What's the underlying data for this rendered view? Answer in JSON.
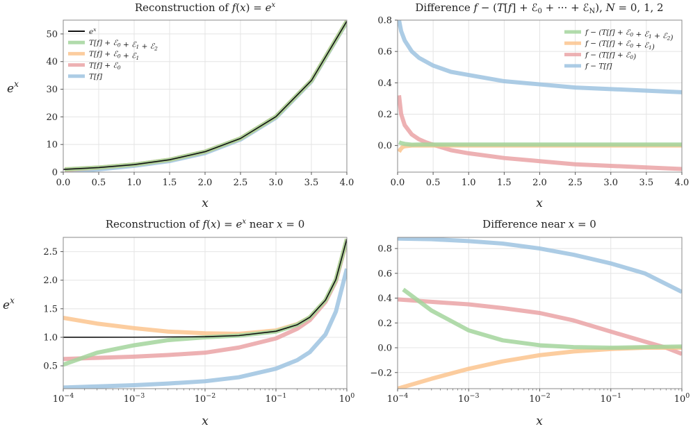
{
  "chart_data": [
    {
      "id": "p1",
      "type": "line",
      "title": "Reconstruction of f(x) = e^x",
      "xlabel": "x",
      "ylabel": "e^x",
      "xscale": "linear",
      "xlim": [
        0,
        4
      ],
      "ylim": [
        0,
        55
      ],
      "xticks": [
        0.0,
        0.5,
        1.0,
        1.5,
        2.0,
        2.5,
        3.0,
        3.5,
        4.0
      ],
      "xtick_labels": [
        "0.0",
        "0.5",
        "1.0",
        "1.5",
        "2.0",
        "2.5",
        "3.0",
        "3.5",
        "4.0"
      ],
      "yticks": [
        0,
        10,
        20,
        30,
        40,
        50
      ],
      "ytick_labels": [
        "0",
        "10",
        "20",
        "30",
        "40",
        "50"
      ],
      "grid": true,
      "legend_position": "top-left",
      "legend_order": [
        "exact",
        "e2",
        "e1",
        "e0",
        "t"
      ],
      "series": [
        {
          "key": "t",
          "name": "T[f]",
          "color": "#9ec3e0",
          "width": 6,
          "opacity": 0.85,
          "x": [
            0.02,
            0.1,
            0.5,
            1.0,
            1.5,
            2.0,
            2.5,
            3.0,
            3.5,
            4.0
          ],
          "y": [
            0.2,
            0.3,
            1.0,
            2.3,
            4.0,
            6.9,
            11.8,
            19.7,
            32.8,
            54.3
          ]
        },
        {
          "key": "e0",
          "name": "T[f] + E_0",
          "color": "#eaa3a6",
          "width": 6,
          "opacity": 0.85,
          "x": [
            0.02,
            0.1,
            0.5,
            1.0,
            1.5,
            2.0,
            2.5,
            3.0,
            3.5,
            4.0
          ],
          "y": [
            0.74,
            0.9,
            1.62,
            2.72,
            4.48,
            7.39,
            12.2,
            20.1,
            33.1,
            54.6
          ]
        },
        {
          "key": "e1",
          "name": "T[f] + E_0 + E_1",
          "color": "#fcc48e",
          "width": 6,
          "opacity": 0.85,
          "x": [
            0.02,
            0.1,
            0.5,
            1.0,
            1.5,
            2.0,
            2.5,
            3.0,
            3.5,
            4.0
          ],
          "y": [
            1.06,
            1.11,
            1.65,
            2.72,
            4.48,
            7.39,
            12.2,
            20.1,
            33.1,
            54.6
          ]
        },
        {
          "key": "e2",
          "name": "T[f] + E_0 + E_1 + E_2",
          "color": "#a3d59c",
          "width": 6,
          "opacity": 0.85,
          "x": [
            0.02,
            0.1,
            0.5,
            1.0,
            1.5,
            2.0,
            2.5,
            3.0,
            3.5,
            4.0
          ],
          "y": [
            1.0,
            1.1,
            1.65,
            2.72,
            4.48,
            7.39,
            12.2,
            20.1,
            33.1,
            54.6
          ]
        },
        {
          "key": "exact",
          "name": "e^x",
          "color": "#111111",
          "width": 1.6,
          "opacity": 1,
          "x": [
            0.0,
            0.5,
            1.0,
            1.5,
            2.0,
            2.5,
            3.0,
            3.5,
            4.0
          ],
          "y": [
            1.0,
            1.65,
            2.72,
            4.48,
            7.39,
            12.18,
            20.09,
            33.12,
            54.6
          ]
        }
      ]
    },
    {
      "id": "p2",
      "type": "line",
      "title": "Difference f − (T[f] + E_0 + ··· + E_N),    N = 0, 1, 2",
      "xlabel": "x",
      "ylabel": "",
      "xscale": "linear",
      "xlim": [
        0,
        4
      ],
      "ylim": [
        -0.17,
        0.8
      ],
      "xticks": [
        0.0,
        0.5,
        1.0,
        1.5,
        2.0,
        2.5,
        3.0,
        3.5,
        4.0
      ],
      "xtick_labels": [
        "0.0",
        "0.5",
        "1.0",
        "1.5",
        "2.0",
        "2.5",
        "3.0",
        "3.5",
        "4.0"
      ],
      "yticks": [
        0.0,
        0.2,
        0.4,
        0.6,
        0.8
      ],
      "ytick_labels": [
        "0.0",
        "0.2",
        "0.4",
        "0.6",
        "0.8"
      ],
      "grid": true,
      "legend_position": "top-right",
      "legend_order": [
        "e2",
        "e1",
        "e0",
        "t"
      ],
      "series": [
        {
          "key": "t",
          "name": "f − T[f]",
          "color": "#9ec3e0",
          "width": 6,
          "opacity": 0.85,
          "x": [
            0.02,
            0.05,
            0.1,
            0.2,
            0.3,
            0.5,
            0.75,
            1.0,
            1.5,
            2.0,
            2.5,
            3.0,
            3.5,
            4.0
          ],
          "y": [
            0.8,
            0.73,
            0.67,
            0.6,
            0.56,
            0.51,
            0.47,
            0.45,
            0.41,
            0.39,
            0.37,
            0.36,
            0.35,
            0.34
          ]
        },
        {
          "key": "e0",
          "name": "f − (T[f] + E_0)",
          "color": "#eaa3a6",
          "width": 6,
          "opacity": 0.85,
          "x": [
            0.02,
            0.05,
            0.1,
            0.2,
            0.3,
            0.4,
            0.5,
            0.75,
            1.0,
            1.5,
            2.0,
            2.5,
            3.0,
            3.5,
            4.0
          ],
          "y": [
            0.32,
            0.2,
            0.13,
            0.07,
            0.04,
            0.02,
            0.005,
            -0.03,
            -0.05,
            -0.08,
            -0.1,
            -0.12,
            -0.13,
            -0.14,
            -0.15
          ]
        },
        {
          "key": "e1",
          "name": "f − (T[f] + E_0 + E_1)",
          "color": "#fcc48e",
          "width": 6,
          "opacity": 0.85,
          "x": [
            0.02,
            0.04,
            0.07,
            0.1,
            0.2,
            0.3,
            0.5,
            1.0,
            2.0,
            3.0,
            4.0
          ],
          "y": [
            -0.04,
            -0.025,
            -0.01,
            -0.005,
            0.0,
            0.0,
            0.0,
            0.0,
            0.0,
            0.0,
            0.0
          ]
        },
        {
          "key": "e2",
          "name": "f − (T[f] + E_0 + E_1 + E_2)",
          "color": "#a3d59c",
          "width": 6,
          "opacity": 0.85,
          "x": [
            0.02,
            0.05,
            0.1,
            0.2,
            0.3,
            0.5,
            1.0,
            2.0,
            3.0,
            4.0
          ],
          "y": [
            0.02,
            0.015,
            0.01,
            0.005,
            0.006,
            0.006,
            0.006,
            0.006,
            0.006,
            0.006
          ]
        }
      ]
    },
    {
      "id": "p3",
      "type": "line",
      "title": "Reconstruction of f(x) = e^x near x = 0",
      "xlabel": "x",
      "ylabel": "e^x",
      "xscale": "log",
      "xlim": [
        0.0001,
        1
      ],
      "ylim": [
        0.1,
        2.75
      ],
      "xticks": [
        0.0001,
        0.001,
        0.01,
        0.1,
        1
      ],
      "xtick_exponents": [
        "−4",
        "−3",
        "−2",
        "−1",
        "0"
      ],
      "yticks": [
        0.5,
        1.0,
        1.5,
        2.0,
        2.5
      ],
      "ytick_labels": [
        "0.5",
        "1.0",
        "1.5",
        "2.0",
        "2.5"
      ],
      "grid": true,
      "series": [
        {
          "key": "t",
          "name": "T[f]",
          "color": "#9ec3e0",
          "width": 6,
          "opacity": 0.85,
          "x": [
            0.0001,
            0.0003,
            0.001,
            0.003,
            0.01,
            0.03,
            0.1,
            0.2,
            0.3,
            0.5,
            0.7,
            1.0
          ],
          "y": [
            0.12,
            0.14,
            0.16,
            0.19,
            0.23,
            0.3,
            0.45,
            0.6,
            0.74,
            1.05,
            1.45,
            2.2
          ]
        },
        {
          "key": "e0",
          "name": "T[f] + E_0",
          "color": "#eaa3a6",
          "width": 6,
          "opacity": 0.85,
          "x": [
            0.0001,
            0.0003,
            0.001,
            0.003,
            0.01,
            0.03,
            0.1,
            0.2,
            0.3,
            0.5,
            0.7,
            1.0
          ],
          "y": [
            0.62,
            0.64,
            0.66,
            0.69,
            0.73,
            0.82,
            0.98,
            1.15,
            1.3,
            1.62,
            1.98,
            2.7
          ]
        },
        {
          "key": "e1",
          "name": "T[f] + E_0 + E_1",
          "color": "#fcc48e",
          "width": 6,
          "opacity": 0.85,
          "x": [
            0.0001,
            0.0003,
            0.001,
            0.003,
            0.01,
            0.03,
            0.1,
            0.2,
            0.3,
            0.5,
            0.7,
            1.0
          ],
          "y": [
            1.34,
            1.24,
            1.16,
            1.1,
            1.07,
            1.06,
            1.12,
            1.23,
            1.35,
            1.65,
            2.01,
            2.72
          ]
        },
        {
          "key": "e2",
          "name": "T[f] + E_0 + E_1 + E_2",
          "color": "#a3d59c",
          "width": 6,
          "opacity": 0.85,
          "x": [
            0.0001,
            0.0003,
            0.001,
            0.003,
            0.01,
            0.03,
            0.1,
            0.2,
            0.3,
            0.5,
            0.7,
            1.0
          ],
          "y": [
            0.52,
            0.73,
            0.86,
            0.95,
            1.0,
            1.03,
            1.1,
            1.22,
            1.35,
            1.65,
            2.01,
            2.72
          ]
        },
        {
          "key": "exact",
          "name": "e^x",
          "color": "#111111",
          "width": 1.6,
          "opacity": 1,
          "x": [
            0.0001,
            0.001,
            0.01,
            0.03,
            0.1,
            0.2,
            0.3,
            0.5,
            0.7,
            1.0
          ],
          "y": [
            1.0,
            1.001,
            1.01,
            1.03,
            1.105,
            1.22,
            1.35,
            1.65,
            2.01,
            2.72
          ]
        }
      ]
    },
    {
      "id": "p4",
      "type": "line",
      "title": "Difference near x = 0",
      "xlabel": "x",
      "ylabel": "",
      "xscale": "log",
      "xlim": [
        0.0001,
        1
      ],
      "ylim": [
        -0.33,
        0.89
      ],
      "xticks": [
        0.0001,
        0.001,
        0.01,
        0.1,
        1
      ],
      "xtick_exponents": [
        "−4",
        "−3",
        "−2",
        "−1",
        "0"
      ],
      "yticks": [
        -0.2,
        0.0,
        0.2,
        0.4,
        0.6,
        0.8
      ],
      "ytick_labels": [
        "−0.2",
        "0.0",
        "0.2",
        "0.4",
        "0.6",
        "0.8"
      ],
      "grid": true,
      "series": [
        {
          "key": "t",
          "name": "f − T[f]",
          "color": "#9ec3e0",
          "width": 6,
          "opacity": 0.85,
          "x": [
            0.0001,
            0.0003,
            0.001,
            0.003,
            0.01,
            0.03,
            0.1,
            0.3,
            1.0
          ],
          "y": [
            0.88,
            0.875,
            0.86,
            0.84,
            0.8,
            0.75,
            0.68,
            0.6,
            0.45
          ]
        },
        {
          "key": "e0",
          "name": "f − (T[f] + E_0)",
          "color": "#eaa3a6",
          "width": 6,
          "opacity": 0.85,
          "x": [
            0.0001,
            0.0003,
            0.001,
            0.003,
            0.01,
            0.03,
            0.1,
            0.3,
            0.6,
            1.0
          ],
          "y": [
            0.39,
            0.37,
            0.35,
            0.32,
            0.28,
            0.22,
            0.13,
            0.05,
            0.0,
            -0.05
          ]
        },
        {
          "key": "e1",
          "name": "f − (T[f] + E_0 + E_1)",
          "color": "#fcc48e",
          "width": 6,
          "opacity": 0.85,
          "x": [
            0.0001,
            0.0003,
            0.001,
            0.003,
            0.01,
            0.03,
            0.1,
            0.3,
            1.0
          ],
          "y": [
            -0.33,
            -0.25,
            -0.17,
            -0.11,
            -0.06,
            -0.03,
            -0.01,
            0.0,
            0.0
          ]
        },
        {
          "key": "e2",
          "name": "f − (T[f] + E_0 + E_1 + E_2)",
          "color": "#a3d59c",
          "width": 6,
          "opacity": 0.85,
          "x": [
            0.00012,
            0.0003,
            0.001,
            0.003,
            0.01,
            0.03,
            0.1,
            0.3,
            1.0
          ],
          "y": [
            0.47,
            0.3,
            0.14,
            0.06,
            0.02,
            0.005,
            0.0,
            0.005,
            0.01
          ]
        }
      ]
    }
  ]
}
